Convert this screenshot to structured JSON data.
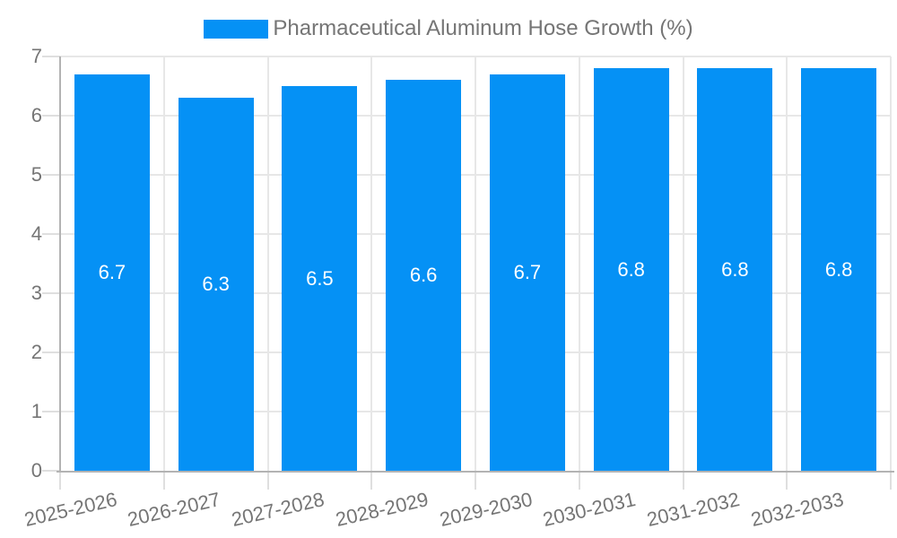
{
  "chart_data": {
    "type": "bar",
    "title": "Pharmaceutical Aluminum Hose Growth (%)",
    "legend_label": "Pharmaceutical Aluminum Hose Growth (%)",
    "legend_position": "top",
    "categories": [
      "2025-2026",
      "2026-2027",
      "2027-2028",
      "2028-2029",
      "2029-2030",
      "2030-2031",
      "2031-2032",
      "2032-2033"
    ],
    "values": [
      6.7,
      6.3,
      6.5,
      6.6,
      6.7,
      6.8,
      6.8,
      6.8
    ],
    "value_labels": [
      "6.7",
      "6.3",
      "6.5",
      "6.6",
      "6.7",
      "6.8",
      "6.8",
      "6.8"
    ],
    "xlabel": "",
    "ylabel": "",
    "ylim": [
      0,
      7
    ],
    "yticks": [
      0,
      1,
      2,
      3,
      4,
      5,
      6,
      7
    ],
    "grid": true,
    "colors": {
      "bar": "#0591F5",
      "bar_value_text": "#FFFFFF",
      "axis_text": "#757575",
      "title_text": "#757575",
      "gridline": "#E7E7E7",
      "tick": "#DFDFDF",
      "axis_line": "#B3B3B3",
      "background": "#FFFFFF"
    }
  }
}
